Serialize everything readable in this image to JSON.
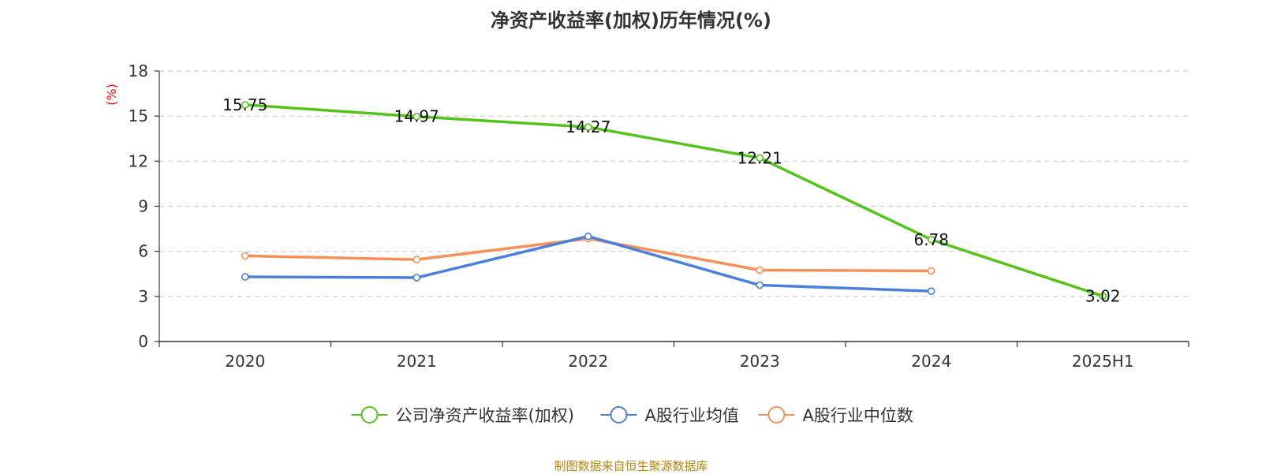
{
  "chart_data": {
    "type": "line",
    "title": "净资产收益率(加权)历年情况(%)",
    "ylabel": "(%)",
    "xlabel": "",
    "categories": [
      "2020",
      "2021",
      "2022",
      "2023",
      "2024",
      "2025H1"
    ],
    "ylim": [
      0,
      18
    ],
    "yticks": [
      0,
      3,
      6,
      9,
      12,
      15,
      18
    ],
    "grid": true,
    "legend_position": "bottom",
    "series": [
      {
        "name": "公司净资产收益率(加权)",
        "color": "#52c41a",
        "values": [
          15.75,
          14.97,
          14.27,
          12.21,
          6.78,
          3.02
        ],
        "labels": [
          "15.75",
          "14.97",
          "14.27",
          "12.21",
          "6.78",
          "3.02"
        ]
      },
      {
        "name": "A股行业均值",
        "color": "#4a7fdc",
        "values": [
          4.3,
          4.25,
          7.0,
          3.75,
          3.35,
          null
        ]
      },
      {
        "name": "A股行业中位数",
        "color": "#f79056",
        "values": [
          5.7,
          5.45,
          6.85,
          4.75,
          4.7,
          null
        ]
      }
    ]
  },
  "footer": {
    "source": "制图数据来自恒生聚源数据库"
  },
  "colors": {
    "axis": "#333333",
    "grid": "#cccccc",
    "ylabel": "#ff0000"
  }
}
